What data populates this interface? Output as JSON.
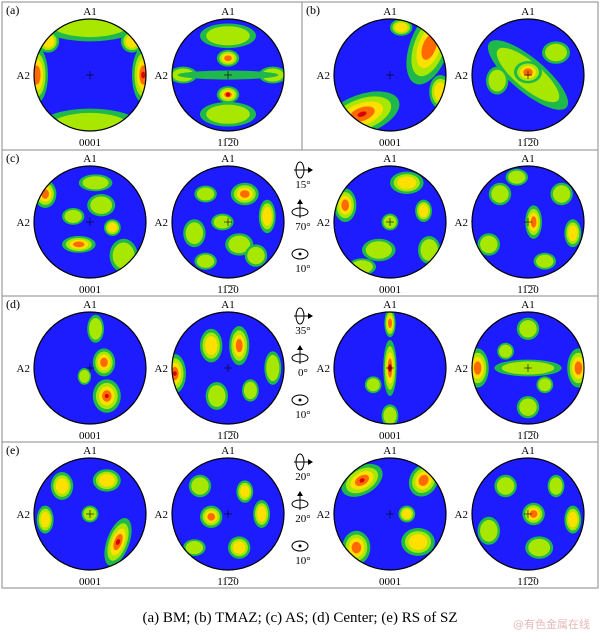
{
  "figure": {
    "panels": [
      {
        "label": "(a)",
        "left_label": "0001",
        "right_label": "11̅2̅0",
        "rot": []
      },
      {
        "label": "(b)",
        "left_label": "0001",
        "right_label": "11̅2̅0",
        "rot": []
      },
      {
        "label": "(c)",
        "rot": [
          "15°",
          "70°",
          "10°"
        ]
      },
      {
        "label": "(d)",
        "rot": [
          "35°",
          "0°",
          "10°"
        ]
      },
      {
        "label": "(e)",
        "rot": [
          "20°",
          "20°",
          "10°"
        ]
      }
    ],
    "axis_labels": {
      "top": "A1",
      "left": "A2"
    },
    "plane_labels": {
      "basal": "0001",
      "prism": "11̅2̅0"
    },
    "colors": {
      "low": "#1c1cff",
      "mid1": "#1fb84a",
      "mid2": "#a8e800",
      "mid3": "#ffe000",
      "high": "#ff6a00",
      "max": "#d80000"
    }
  },
  "caption": "(a) BM; (b) TMAZ; (c) AS; (d) Center; (e) RS of SZ",
  "watermark": "@有色金属在线"
}
